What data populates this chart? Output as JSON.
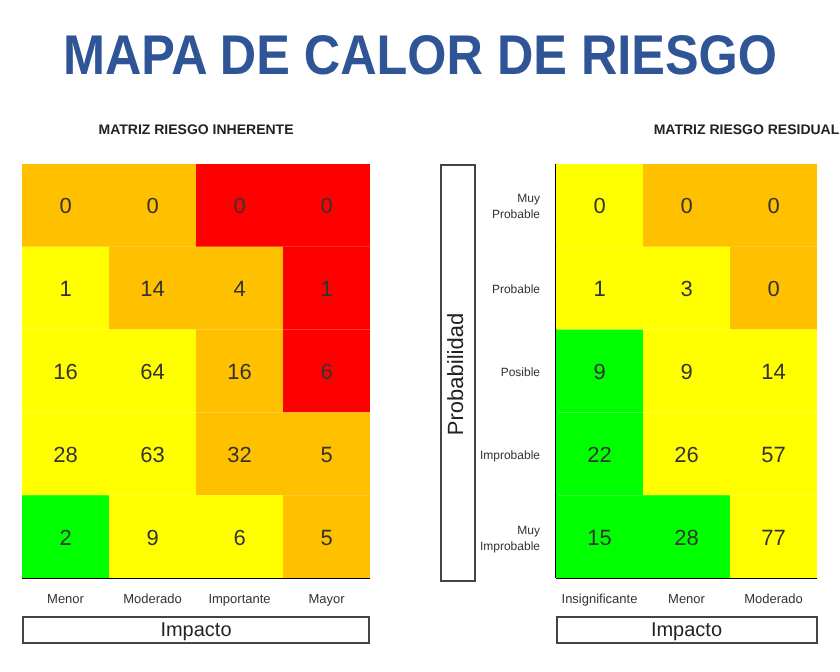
{
  "chart_data": [
    {
      "type": "heatmap",
      "title": "MAPA DE CALOR DE RIESGO",
      "data_labels": true,
      "subtitle": "MATRIZ RIESGO INHERENTE",
      "xlabel": "Impacto",
      "tick_labels": "x",
      "categories": [
        "Menor",
        "Moderado",
        "Importante",
        "Mayor"
      ],
      "y_categories": [
        null,
        null,
        null,
        null,
        null
      ],
      "cells": [
        [
          0,
          0,
          0,
          0
        ],
        [
          1,
          14,
          4,
          1
        ],
        [
          16,
          64,
          16,
          6
        ],
        [
          28,
          63,
          32,
          5
        ],
        [
          2,
          9,
          6,
          5
        ]
      ],
      "colors": [
        [
          "#ffc000",
          "#ffc000",
          "#ff0000",
          "#ff0000"
        ],
        [
          "#ffff00",
          "#ffc000",
          "#ffc000",
          "#ff0000"
        ],
        [
          "#ffff00",
          "#ffff00",
          "#ffc000",
          "#ff0000"
        ],
        [
          "#ffff00",
          "#ffff00",
          "#ffc000",
          "#ffc000"
        ],
        [
          "#00ff00",
          "#ffff00",
          "#ffff00",
          "#ffc000"
        ]
      ]
    },
    {
      "type": "heatmap",
      "subtitle": "MATRIZ RIESGO RESIDUAL",
      "data_labels": true,
      "xlabel": "Impacto",
      "ylabel": "Probabilidad",
      "categories": [
        "Insignificante",
        "Menor",
        "Moderado"
      ],
      "y_categories": [
        "Muy Probable",
        "Probable",
        "Posible",
        "Improbable",
        "Muy Improbable"
      ],
      "cells": [
        [
          0,
          0,
          0
        ],
        [
          1,
          3,
          0
        ],
        [
          9,
          9,
          14
        ],
        [
          22,
          26,
          57
        ],
        [
          15,
          28,
          77
        ]
      ],
      "colors": [
        [
          "#ffff00",
          "#ffc000",
          "#ffc000"
        ],
        [
          "#ffff00",
          "#ffff00",
          "#ffc000"
        ],
        [
          "#00ff00",
          "#ffff00",
          "#ffff00"
        ],
        [
          "#00ff00",
          "#ffff00",
          "#ffff00"
        ],
        [
          "#00ff00",
          "#00ff00",
          "#ffff00"
        ]
      ]
    }
  ]
}
